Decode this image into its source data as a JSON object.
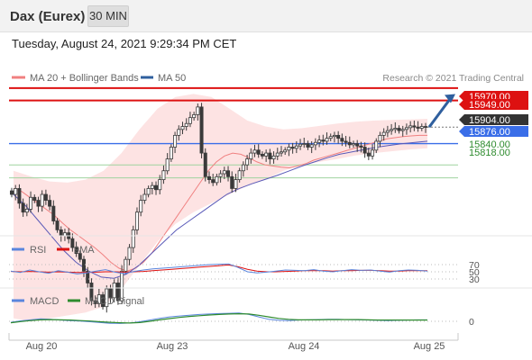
{
  "header": {
    "instrument": "Dax (Eurex)",
    "timeframe": "30 MIN",
    "timestamp": "Tuesday, August 24, 2021 9:29:34 PM CET"
  },
  "legend": {
    "ma20": "MA 20 + Bollinger Bands",
    "ma50": "MA 50",
    "copyright": "Research © 2021 Trading Central"
  },
  "colors": {
    "red": "#dd1111",
    "blue": "#3a6ee8",
    "green": "#2e8b2e",
    "candle": "#3a3a3a",
    "band": "#fcd9d9",
    "ma20": "#f08080",
    "ma50": "#5a5ab8",
    "arrow": "#2f5f9e"
  },
  "chart_data": [
    {
      "type": "candlestick",
      "x_ticks": [
        "Aug 20",
        "Aug 23",
        "Aug 24",
        "Aug 25"
      ],
      "ylim": [
        15480,
        16000
      ],
      "resistance_lines": [
        15970.0,
        15949.0
      ],
      "support_lines": [
        15840.0,
        15818.0
      ],
      "pivot": 15876.0,
      "last_price": 15904.0,
      "price_labels": [
        "15970.00",
        "15949.00",
        "15904.00",
        "15876.00",
        "15840.00",
        "15818.00"
      ],
      "close": [
        15790,
        15800,
        15775,
        15760,
        15765,
        15785,
        15780,
        15770,
        15790,
        15780,
        15770,
        15745,
        15730,
        15720,
        15725,
        15715,
        15700,
        15690,
        15680,
        15660,
        15640,
        15610,
        15605,
        15620,
        15600,
        15630,
        15615,
        15640,
        15610,
        15660,
        15680,
        15700,
        15730,
        15760,
        15780,
        15790,
        15800,
        15805,
        15798,
        15815,
        15830,
        15850,
        15870,
        15890,
        15900,
        15905,
        15910,
        15920,
        15925,
        15938,
        15860,
        15820,
        15815,
        15810,
        15820,
        15825,
        15830,
        15820,
        15800,
        15815,
        15830,
        15840,
        15850,
        15860,
        15865,
        15858,
        15855,
        15860,
        15850,
        15855,
        15860,
        15862,
        15865,
        15870,
        15868,
        15872,
        15875,
        15876,
        15870,
        15874,
        15878,
        15882,
        15880,
        15885,
        15888,
        15890,
        15885,
        15880,
        15878,
        15874,
        15876,
        15872,
        15870,
        15860,
        15855,
        15865,
        15880,
        15890,
        15895,
        15898,
        15900,
        15902,
        15898,
        15900,
        15903,
        15906,
        15904,
        15902,
        15905,
        15904
      ],
      "ma20": [
        15800,
        15795,
        15785,
        15775,
        15765,
        15755,
        15742,
        15730,
        15720,
        15710,
        15700,
        15688,
        15675,
        15665,
        15660,
        15665,
        15675,
        15690,
        15710,
        15730,
        15750,
        15770,
        15790,
        15810,
        15830,
        15845,
        15855,
        15860,
        15858,
        15852,
        15845,
        15840,
        15838,
        15836,
        15835,
        15838,
        15842,
        15848,
        15852,
        15856,
        15860,
        15864,
        15868,
        15872,
        15876,
        15880,
        15884,
        15886,
        15888,
        15889,
        15890,
        15890
      ],
      "ma50": [
        15790,
        15770,
        15745,
        15720,
        15695,
        15675,
        15660,
        15650,
        15648,
        15655,
        15670,
        15690,
        15710,
        15730,
        15745,
        15760,
        15775,
        15790,
        15800,
        15808,
        15815,
        15822,
        15830,
        15838,
        15845,
        15852,
        15858,
        15862,
        15866,
        15870,
        15873,
        15876,
        15878,
        15880
      ],
      "bb_upper": [
        15830,
        15820,
        15812,
        15810,
        15815,
        15830,
        15860,
        15900,
        15935,
        15955,
        15960,
        15955,
        15935,
        15915,
        15905,
        15900,
        15902,
        15906,
        15910,
        15913,
        15915,
        15916,
        15917,
        15918
      ],
      "bb_lower": [
        15580,
        15575,
        15580,
        15585,
        15590,
        15600,
        15630,
        15670,
        15710,
        15740,
        15760,
        15775,
        15790,
        15805,
        15815,
        15830,
        15840,
        15845,
        15850,
        15856,
        15860,
        15863,
        15866,
        15868
      ],
      "forecast_arrow": {
        "from": 15904,
        "to": 15960
      }
    },
    {
      "type": "line",
      "title": "RSI",
      "series": [
        {
          "name": "RSI",
          "values": [
            52,
            48,
            55,
            50,
            46,
            53,
            49,
            44,
            47,
            52,
            56,
            49,
            45,
            51,
            55,
            58,
            60,
            62,
            64,
            66,
            68,
            70,
            71,
            72,
            62,
            50,
            47,
            49,
            52,
            55,
            54,
            53,
            56,
            52,
            50,
            53,
            56,
            54,
            55,
            52,
            49,
            53,
            55,
            54,
            52
          ]
        },
        {
          "name": "9MA",
          "values": [
            51,
            50,
            51,
            50,
            49,
            50,
            49,
            48,
            48,
            49,
            50,
            50,
            49,
            50,
            51,
            53,
            55,
            57,
            59,
            61,
            63,
            65,
            67,
            69,
            64,
            57,
            52,
            50,
            50,
            51,
            52,
            53,
            53,
            53,
            52,
            53,
            53,
            54,
            54,
            53,
            52,
            52,
            53,
            53,
            53
          ]
        }
      ],
      "levels": [
        "70",
        "50",
        "30"
      ],
      "level_values": [
        70,
        50,
        30
      ]
    },
    {
      "type": "line",
      "title": "MACD",
      "series": [
        {
          "name": "MACD",
          "values": [
            -4,
            2,
            6,
            10,
            8,
            5,
            3,
            1,
            -2,
            -5,
            -8,
            -9,
            -7,
            -2,
            5,
            12,
            18,
            22,
            25,
            28,
            30,
            32,
            33,
            34,
            28,
            18,
            8,
            4,
            3,
            5,
            6,
            7,
            8,
            8,
            7,
            6,
            5,
            4,
            3,
            4,
            5,
            6,
            6
          ]
        },
        {
          "name": "MACD Signal",
          "values": [
            -6,
            -1,
            3,
            6,
            7,
            6,
            5,
            3,
            1,
            -2,
            -4,
            -6,
            -7,
            -5,
            0,
            6,
            11,
            16,
            20,
            23,
            26,
            28,
            30,
            31,
            30,
            25,
            18,
            12,
            8,
            6,
            6,
            6,
            7,
            7,
            7,
            7,
            6,
            5,
            5,
            5,
            5,
            5,
            5
          ]
        }
      ],
      "zero_label": "0"
    }
  ]
}
